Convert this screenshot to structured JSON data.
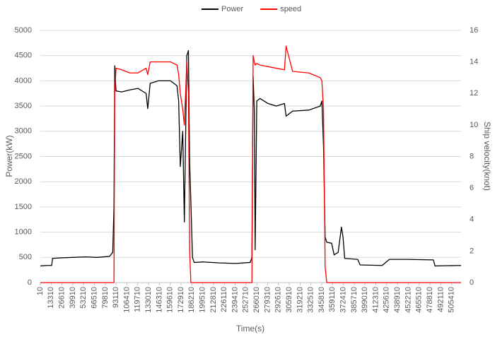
{
  "chart_data": {
    "type": "line",
    "x_label": "Time(s)",
    "y_label": "Power(kW)",
    "y2_label": "Ship velocity(knot)",
    "x": [
      10,
      8000,
      14000,
      15000,
      25000,
      40000,
      55000,
      70000,
      85000,
      89000,
      90500,
      91500,
      93000,
      100000,
      110000,
      120000,
      130000,
      132000,
      135000,
      145000,
      160000,
      168000,
      170000,
      172000,
      175000,
      177000,
      180000,
      182000,
      183500,
      185000,
      187000,
      189000,
      200000,
      220000,
      240000,
      258000,
      260000,
      261500,
      263000,
      264000,
      266000,
      270000,
      280000,
      290000,
      300000,
      302000,
      310000,
      330000,
      344000,
      346000,
      348000,
      350000,
      352000,
      358000,
      361000,
      366000,
      370000,
      372000,
      374000,
      390000,
      393000,
      420000,
      429000,
      450000,
      483000,
      485000,
      517000
    ],
    "series": [
      {
        "name": "Power",
        "color": "#000000",
        "values": [
          330,
          340,
          340,
          480,
          490,
          500,
          510,
          500,
          520,
          600,
          1500,
          4300,
          3800,
          3780,
          3820,
          3850,
          3750,
          3450,
          3950,
          4000,
          4000,
          3900,
          3600,
          2300,
          3000,
          1200,
          4500,
          4600,
          2400,
          1600,
          500,
          400,
          410,
          390,
          380,
          400,
          500,
          4100,
          3400,
          650,
          3600,
          3650,
          3550,
          3500,
          3550,
          3300,
          3400,
          3420,
          3500,
          3600,
          2700,
          900,
          800,
          780,
          550,
          600,
          1100,
          900,
          480,
          460,
          350,
          340,
          460,
          460,
          450,
          330,
          340
        ]
      },
      {
        "name": "speed",
        "color": "#ff0000",
        "axis": "y2",
        "values": [
          0,
          0,
          0,
          0,
          0,
          0,
          0,
          0,
          0,
          0,
          0,
          12,
          13.6,
          13.5,
          13.3,
          13.3,
          13.6,
          13.2,
          14,
          14,
          14,
          13.8,
          13.2,
          12,
          11,
          10,
          14,
          12,
          2,
          0,
          0,
          0,
          0,
          0,
          0,
          0,
          0,
          14.4,
          14,
          13.8,
          13.9,
          13.8,
          13.7,
          13.6,
          13.5,
          15,
          13.4,
          13.3,
          13,
          12.8,
          11,
          1,
          0,
          0,
          0,
          0,
          0,
          0,
          0,
          0,
          0,
          0,
          0,
          0,
          0,
          0,
          0
        ]
      }
    ],
    "xlim": [
      0,
      517000
    ],
    "xticks": [
      10,
      13310,
      26610,
      39910,
      53210,
      66510,
      79810,
      93110,
      106410,
      119710,
      133010,
      146310,
      159610,
      172910,
      186210,
      199510,
      212810,
      226110,
      239410,
      252710,
      266010,
      279310,
      292610,
      305910,
      319210,
      332510,
      345810,
      359110,
      372410,
      385710,
      399010,
      412310,
      425610,
      438910,
      452210,
      465510,
      478810,
      492110,
      505410
    ],
    "ylim": [
      0,
      5000
    ],
    "yticks": [
      0,
      500,
      1000,
      1500,
      2000,
      2500,
      3000,
      3500,
      4000,
      4500,
      5000
    ],
    "y2lim": [
      0,
      16
    ],
    "y2ticks": [
      0,
      2,
      4,
      6,
      8,
      10,
      12,
      14,
      16
    ],
    "grid": true,
    "legend": "top"
  }
}
